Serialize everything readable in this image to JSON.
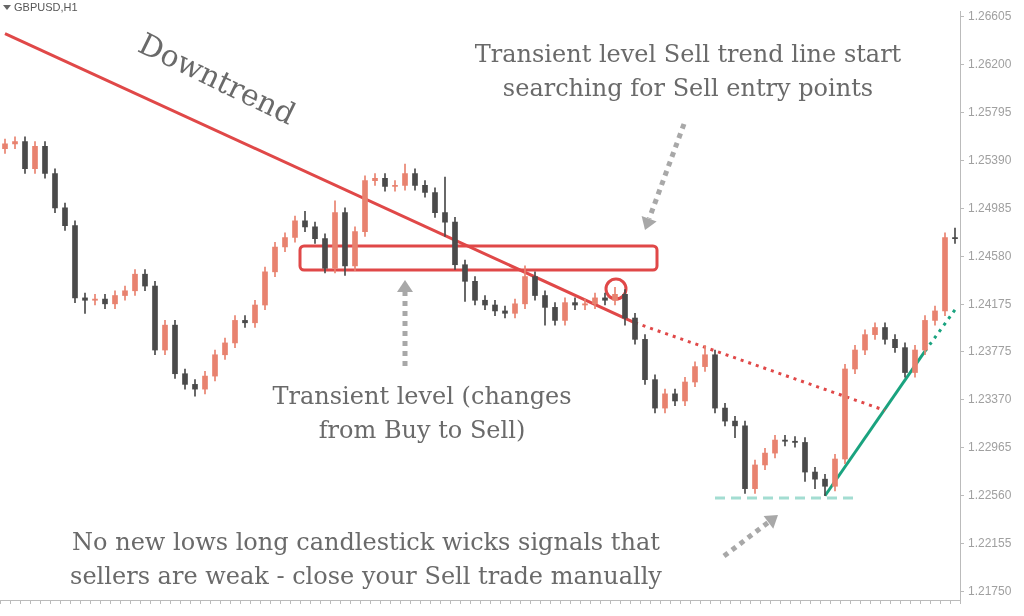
{
  "chart_data": {
    "type": "candlestick",
    "title": "GBPUSD,H1",
    "categories": [
      null,
      null,
      null,
      null,
      null,
      null,
      null,
      null,
      null,
      null,
      null,
      null,
      null,
      null,
      null,
      null,
      null,
      null,
      null,
      null,
      null,
      null,
      null,
      null,
      null,
      null,
      null,
      null,
      null,
      null,
      null,
      null,
      null,
      null,
      null,
      null,
      null,
      null,
      null,
      null,
      null,
      null,
      null,
      null,
      null,
      null,
      null,
      null,
      null,
      null,
      null,
      null,
      null,
      null,
      null,
      null,
      null,
      null,
      null,
      null,
      null,
      null,
      null,
      null,
      null,
      null,
      null,
      null,
      null,
      null,
      null,
      null,
      null,
      null,
      null,
      null,
      null,
      null,
      null,
      null,
      null,
      null,
      null,
      null,
      null,
      null,
      null,
      null,
      null,
      null,
      null,
      null,
      null,
      null,
      null,
      null
    ],
    "ohlc": [
      [
        1.2549,
        1.2557,
        1.2545,
        1.2553
      ],
      [
        1.2553,
        1.2559,
        1.2549,
        1.2555
      ],
      [
        1.2555,
        1.2559,
        1.2528,
        1.2532
      ],
      [
        1.2532,
        1.2555,
        1.2528,
        1.2551
      ],
      [
        1.2551,
        1.2555,
        1.2524,
        1.2528
      ],
      [
        1.2528,
        1.2532,
        1.2495,
        1.2499
      ],
      [
        1.2499,
        1.2503,
        1.248,
        1.2484
      ],
      [
        1.2484,
        1.2488,
        1.2419,
        1.2423
      ],
      [
        1.2423,
        1.2427,
        1.241,
        1.2421
      ],
      [
        1.2421,
        1.2426,
        1.2417,
        1.2422
      ],
      [
        1.2422,
        1.2426,
        1.2414,
        1.2418
      ],
      [
        1.2418,
        1.2429,
        1.2414,
        1.2425
      ],
      [
        1.2425,
        1.2433,
        1.2421,
        1.2429
      ],
      [
        1.2429,
        1.2447,
        1.2425,
        1.2443
      ],
      [
        1.2443,
        1.2447,
        1.2429,
        1.2433
      ],
      [
        1.2433,
        1.2437,
        1.2375,
        1.2379
      ],
      [
        1.2379,
        1.2404,
        1.2375,
        1.24
      ],
      [
        1.24,
        1.2404,
        1.2355,
        1.2359
      ],
      [
        1.2359,
        1.2363,
        1.2346,
        1.235
      ],
      [
        1.235,
        1.2354,
        1.234,
        1.2346
      ],
      [
        1.2346,
        1.2361,
        1.2342,
        1.2357
      ],
      [
        1.2357,
        1.2379,
        1.2353,
        1.2375
      ],
      [
        1.2375,
        1.2389,
        1.2371,
        1.2385
      ],
      [
        1.2385,
        1.2408,
        1.2381,
        1.2404
      ],
      [
        1.2404,
        1.2408,
        1.2398,
        1.2402
      ],
      [
        1.2402,
        1.2421,
        1.2398,
        1.2417
      ],
      [
        1.2417,
        1.2449,
        1.2413,
        1.2445
      ],
      [
        1.2445,
        1.247,
        1.2441,
        1.2466
      ],
      [
        1.2466,
        1.2478,
        1.2462,
        1.2474
      ],
      [
        1.2474,
        1.2492,
        1.247,
        1.2488
      ],
      [
        1.2488,
        1.2496,
        1.2479,
        1.2483
      ],
      [
        1.2483,
        1.2487,
        1.2469,
        1.2473
      ],
      [
        1.2473,
        1.2477,
        1.2444,
        1.2448
      ],
      [
        1.2448,
        1.2505,
        1.2444,
        1.2495
      ],
      [
        1.2495,
        1.2499,
        1.2442,
        1.245
      ],
      [
        1.245,
        1.2483,
        1.2446,
        1.2479
      ],
      [
        1.2479,
        1.2526,
        1.2475,
        1.2522
      ],
      [
        1.2522,
        1.2528,
        1.2518,
        1.2524
      ],
      [
        1.2524,
        1.2528,
        1.2513,
        1.2517
      ],
      [
        1.2517,
        1.2522,
        1.2513,
        1.2518
      ],
      [
        1.2518,
        1.2536,
        1.2514,
        1.2528
      ],
      [
        1.2528,
        1.2532,
        1.2514,
        1.2518
      ],
      [
        1.2518,
        1.2522,
        1.2508,
        1.2512
      ],
      [
        1.2512,
        1.2516,
        1.2491,
        1.2495
      ],
      [
        1.2495,
        1.2525,
        1.2475,
        1.2487
      ],
      [
        1.2487,
        1.2491,
        1.2447,
        1.2451
      ],
      [
        1.2451,
        1.2455,
        1.242,
        1.2437
      ],
      [
        1.2437,
        1.2441,
        1.2417,
        1.2421
      ],
      [
        1.2421,
        1.2425,
        1.2413,
        1.2417
      ],
      [
        1.2417,
        1.2421,
        1.2408,
        1.2412
      ],
      [
        1.2412,
        1.2416,
        1.2406,
        1.241
      ],
      [
        1.241,
        1.2422,
        1.2406,
        1.2418
      ],
      [
        1.2418,
        1.245,
        1.2414,
        1.2441
      ],
      [
        1.2441,
        1.2445,
        1.2421,
        1.2425
      ],
      [
        1.2425,
        1.2429,
        1.24,
        1.2415
      ],
      [
        1.2415,
        1.2419,
        1.24,
        1.2404
      ],
      [
        1.2404,
        1.2423,
        1.24,
        1.2419
      ],
      [
        1.2419,
        1.2423,
        1.2413,
        1.2417
      ],
      [
        1.2417,
        1.2422,
        1.2413,
        1.2418
      ],
      [
        1.2418,
        1.2427,
        1.2414,
        1.2423
      ],
      [
        1.2423,
        1.2427,
        1.2417,
        1.2421
      ],
      [
        1.2421,
        1.2432,
        1.2417,
        1.2426
      ],
      [
        1.2426,
        1.243,
        1.24,
        1.2406
      ],
      [
        1.2406,
        1.241,
        1.2384,
        1.2388
      ],
      [
        1.2388,
        1.2392,
        1.235,
        1.2354
      ],
      [
        1.2354,
        1.2358,
        1.2326,
        1.233
      ],
      [
        1.233,
        1.2346,
        1.2326,
        1.2342
      ],
      [
        1.2342,
        1.2346,
        1.2332,
        1.2336
      ],
      [
        1.2336,
        1.2356,
        1.2332,
        1.2352
      ],
      [
        1.2352,
        1.2369,
        1.2348,
        1.2365
      ],
      [
        1.2365,
        1.2383,
        1.2361,
        1.2375
      ],
      [
        1.2375,
        1.2379,
        1.2326,
        1.233
      ],
      [
        1.233,
        1.2334,
        1.2315,
        1.2319
      ],
      [
        1.2319,
        1.2323,
        1.2305,
        1.2315
      ],
      [
        1.2315,
        1.2319,
        1.2258,
        1.2262
      ],
      [
        1.2262,
        1.2286,
        1.2258,
        1.2282
      ],
      [
        1.2282,
        1.2296,
        1.2278,
        1.2292
      ],
      [
        1.2292,
        1.2307,
        1.2288,
        1.2303
      ],
      [
        1.2303,
        1.2307,
        1.2298,
        1.2302
      ],
      [
        1.2302,
        1.2306,
        1.2297,
        1.2301
      ],
      [
        1.2301,
        1.2305,
        1.2268,
        1.2276
      ],
      [
        1.2276,
        1.228,
        1.2262,
        1.227
      ],
      [
        1.227,
        1.2274,
        1.2256,
        1.2264
      ],
      [
        1.2264,
        1.2291,
        1.226,
        1.2287
      ],
      [
        1.2287,
        1.2367,
        1.2283,
        1.2363
      ],
      [
        1.2363,
        1.2383,
        1.2359,
        1.2379
      ],
      [
        1.2379,
        1.2396,
        1.2375,
        1.2392
      ],
      [
        1.2392,
        1.2402,
        1.2388,
        1.2398
      ],
      [
        1.2398,
        1.2402,
        1.2384,
        1.2388
      ],
      [
        1.2388,
        1.2392,
        1.2377,
        1.2381
      ],
      [
        1.2381,
        1.2385,
        1.2356,
        1.236
      ],
      [
        1.236,
        1.2383,
        1.2356,
        1.2379
      ],
      [
        1.2379,
        1.2408,
        1.2375,
        1.2404
      ],
      [
        1.2404,
        1.2416,
        1.24,
        1.2412
      ],
      [
        1.2412,
        1.2478,
        1.2408,
        1.2474
      ],
      [
        1.2474,
        1.2482,
        1.2469,
        1.2473
      ]
    ],
    "colors": [
      "#e8826f",
      "#e8826f",
      "#4a4a4a",
      "#e8826f",
      "#4a4a4a",
      "#4a4a4a",
      "#4a4a4a",
      "#4a4a4a",
      "#4a4a4a",
      "#e8826f",
      "#4a4a4a",
      "#e8826f",
      "#e8826f",
      "#e8826f",
      "#4a4a4a",
      "#4a4a4a",
      "#e8826f",
      "#4a4a4a",
      "#4a4a4a",
      "#4a4a4a",
      "#e8826f",
      "#e8826f",
      "#e8826f",
      "#e8826f",
      "#4a4a4a",
      "#e8826f",
      "#e8826f",
      "#e8826f",
      "#e8826f",
      "#e8826f",
      "#4a4a4a",
      "#4a4a4a",
      "#4a4a4a",
      "#e8826f",
      "#4a4a4a",
      "#e8826f",
      "#e8826f",
      "#e8826f",
      "#4a4a4a",
      "#e8826f",
      "#e8826f",
      "#4a4a4a",
      "#4a4a4a",
      "#4a4a4a",
      "#4a4a4a",
      "#4a4a4a",
      "#4a4a4a",
      "#4a4a4a",
      "#4a4a4a",
      "#4a4a4a",
      "#4a4a4a",
      "#e8826f",
      "#e8826f",
      "#4a4a4a",
      "#4a4a4a",
      "#4a4a4a",
      "#e8826f",
      "#4a4a4a",
      "#e8826f",
      "#e8826f",
      "#4a4a4a",
      "#e8826f",
      "#4a4a4a",
      "#4a4a4a",
      "#4a4a4a",
      "#4a4a4a",
      "#e8826f",
      "#4a4a4a",
      "#e8826f",
      "#e8826f",
      "#e8826f",
      "#4a4a4a",
      "#4a4a4a",
      "#4a4a4a",
      "#4a4a4a",
      "#e8826f",
      "#e8826f",
      "#e8826f",
      "#4a4a4a",
      "#4a4a4a",
      "#4a4a4a",
      "#4a4a4a",
      "#4a4a4a",
      "#e8826f",
      "#e8826f",
      "#e8826f",
      "#e8826f",
      "#e8826f",
      "#4a4a4a",
      "#4a4a4a",
      "#4a4a4a",
      "#e8826f",
      "#e8826f",
      "#e8826f",
      "#e8826f",
      "#4a4a4a"
    ],
    "series": [
      {
        "type": "line",
        "color": "#e04848",
        "line_style": "solid",
        "values": [
          1.2646,
          null,
          null,
          null,
          null,
          null,
          null,
          null,
          null,
          null,
          null,
          null,
          null,
          null,
          null,
          null,
          null,
          null,
          null,
          null,
          null,
          null,
          null,
          null,
          null,
          null,
          null,
          null,
          null,
          null,
          null,
          null,
          null,
          null,
          null,
          null,
          null,
          null,
          null,
          null,
          null,
          null,
          null,
          null,
          null,
          null,
          null,
          null,
          null,
          null,
          null,
          null,
          null,
          null,
          null,
          null,
          null,
          null,
          null,
          null,
          null,
          null,
          null,
          1.2402,
          null,
          null,
          null,
          null,
          null,
          null,
          null,
          null,
          null,
          null,
          null,
          null,
          null,
          null,
          null,
          null,
          null,
          null,
          null,
          null,
          null,
          null,
          null,
          null,
          null,
          null,
          null,
          null,
          null,
          null,
          null,
          null
        ]
      },
      {
        "type": "line",
        "color": "#e04848",
        "line_style": "dotted",
        "values": [
          null,
          null,
          null,
          null,
          null,
          null,
          null,
          null,
          null,
          null,
          null,
          null,
          null,
          null,
          null,
          null,
          null,
          null,
          null,
          null,
          null,
          null,
          null,
          null,
          null,
          null,
          null,
          null,
          null,
          null,
          null,
          null,
          null,
          null,
          null,
          null,
          null,
          null,
          null,
          null,
          null,
          null,
          null,
          null,
          null,
          null,
          null,
          null,
          null,
          null,
          null,
          null,
          null,
          null,
          null,
          null,
          null,
          null,
          null,
          null,
          null,
          null,
          null,
          1.2402,
          null,
          null,
          null,
          null,
          null,
          null,
          null,
          null,
          null,
          null,
          null,
          null,
          null,
          null,
          null,
          null,
          null,
          null,
          null,
          null,
          null,
          null,
          null,
          null,
          1.2328,
          null,
          null,
          null,
          null,
          null,
          null,
          null
        ]
      },
      {
        "type": "line",
        "color": "#1aa37f",
        "line_style": "solid",
        "values": [
          null,
          null,
          null,
          null,
          null,
          null,
          null,
          null,
          null,
          null,
          null,
          null,
          null,
          null,
          null,
          null,
          null,
          null,
          null,
          null,
          null,
          null,
          null,
          null,
          null,
          null,
          null,
          null,
          null,
          null,
          null,
          null,
          null,
          null,
          null,
          null,
          null,
          null,
          null,
          null,
          null,
          null,
          null,
          null,
          null,
          null,
          null,
          null,
          null,
          null,
          null,
          null,
          null,
          null,
          null,
          null,
          null,
          null,
          null,
          null,
          null,
          null,
          null,
          null,
          null,
          null,
          null,
          null,
          null,
          null,
          null,
          null,
          null,
          null,
          null,
          null,
          null,
          null,
          null,
          null,
          null,
          null,
          1.2256,
          null,
          null,
          null,
          null,
          null,
          null,
          null,
          null,
          null,
          1.2378,
          null,
          null,
          null
        ]
      },
      {
        "type": "line",
        "color": "#1aa37f",
        "line_style": "dotted",
        "values": [
          null,
          null,
          null,
          null,
          null,
          null,
          null,
          null,
          null,
          null,
          null,
          null,
          null,
          null,
          null,
          null,
          null,
          null,
          null,
          null,
          null,
          null,
          null,
          null,
          null,
          null,
          null,
          null,
          null,
          null,
          null,
          null,
          null,
          null,
          null,
          null,
          null,
          null,
          null,
          null,
          null,
          null,
          null,
          null,
          null,
          null,
          null,
          null,
          null,
          null,
          null,
          null,
          null,
          null,
          null,
          null,
          null,
          null,
          null,
          null,
          null,
          null,
          null,
          null,
          null,
          null,
          null,
          null,
          null,
          null,
          null,
          null,
          null,
          null,
          null,
          null,
          null,
          null,
          null,
          null,
          null,
          null,
          null,
          null,
          null,
          null,
          null,
          null,
          null,
          null,
          null,
          null,
          1.2378,
          null,
          null,
          1.2413
        ]
      },
      {
        "type": "line",
        "color": "#a3ddd2",
        "line_style": "dashed",
        "values": [
          null,
          null,
          null,
          null,
          null,
          null,
          null,
          null,
          null,
          null,
          null,
          null,
          null,
          null,
          null,
          null,
          null,
          null,
          null,
          null,
          null,
          null,
          null,
          null,
          null,
          null,
          null,
          null,
          null,
          null,
          null,
          null,
          null,
          null,
          null,
          null,
          null,
          null,
          null,
          null,
          null,
          null,
          null,
          null,
          null,
          null,
          null,
          null,
          null,
          null,
          null,
          null,
          null,
          null,
          null,
          null,
          null,
          null,
          null,
          null,
          null,
          null,
          null,
          null,
          null,
          null,
          null,
          null,
          null,
          null,
          null,
          1.2254,
          null,
          null,
          null,
          null,
          null,
          null,
          null,
          null,
          null,
          null,
          null,
          null,
          null,
          1.2254,
          null,
          null,
          null,
          null,
          null,
          null,
          null,
          null,
          null,
          null
        ]
      }
    ],
    "ylim": [
      1.2168,
      1.2665
    ],
    "yticks": [
      {
        "value": 1.2175,
        "label": "1.21750"
      },
      {
        "value": 1.22155,
        "label": "1.22155"
      },
      {
        "value": 1.2256,
        "label": "1.22560"
      },
      {
        "value": 1.22965,
        "label": "1.22965"
      },
      {
        "value": 1.2337,
        "label": "1.23370"
      },
      {
        "value": 1.23775,
        "label": "1.23775"
      },
      {
        "value": 1.24175,
        "label": "1.24175"
      },
      {
        "value": 1.2458,
        "label": "1.24580"
      },
      {
        "value": 1.24985,
        "label": "1.24985"
      },
      {
        "value": 1.2539,
        "label": "1.25390"
      },
      {
        "value": 1.25795,
        "label": "1.25795"
      },
      {
        "value": 1.262,
        "label": "1.26200"
      },
      {
        "value": 1.26605,
        "label": "1.26605"
      }
    ],
    "tick_labels": "y",
    "marker": "none",
    "annotations": [
      "Downtrend",
      "Transient level Sell trend line start\nsearching for Sell entry points",
      "Transient level (changes\nfrom Buy to Sell)",
      "No new lows long candlestick wicks signals that\nsellers are weak - close your Sell trade manually"
    ]
  }
}
